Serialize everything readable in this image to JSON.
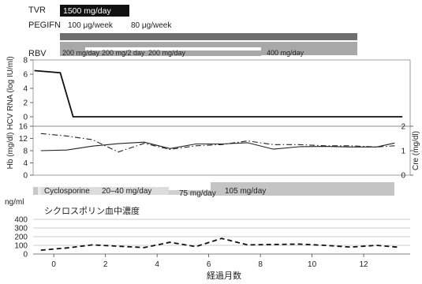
{
  "x_axis": {
    "label": "経過月数",
    "ticks": [
      0,
      2,
      4,
      6,
      8,
      10,
      12
    ],
    "range": [
      -0.8,
      13.8
    ]
  },
  "treatments": {
    "tvr": {
      "name": "TVR",
      "dose": "1500 mg/day"
    },
    "pegifn": {
      "name": "PEGIFN",
      "doses": [
        "100 μg/week",
        "80 μg/week"
      ]
    },
    "rbv": {
      "name": "RBV",
      "doses": [
        "200 mg/day",
        "200 mg/2 day",
        "200 mg/day",
        "400 mg/day"
      ]
    },
    "cyclosporine": {
      "name": "Cyclosporine",
      "doses": [
        "20–40 mg/day",
        "75 mg/day",
        "105 mg/day"
      ]
    }
  },
  "chart_data": [
    {
      "type": "line",
      "ylabel": "HCV RNA (log IU/ml)",
      "ylim": [
        0,
        8
      ],
      "yticks": [
        0,
        2,
        4,
        6,
        8
      ],
      "series": [
        {
          "x": [
            -0.75,
            0.25,
            0.75,
            13.5
          ],
          "y": [
            6.5,
            6.2,
            0,
            0
          ]
        }
      ]
    },
    {
      "type": "line",
      "ylabel_left": "Hb (mg/dl)",
      "ylabel_right": "Cre (mg/dl)",
      "ylim_left": [
        0,
        16
      ],
      "yticks_left": [
        0,
        4,
        8,
        12,
        16
      ],
      "ylim_right": [
        0,
        2
      ],
      "yticks_right": [
        0,
        1,
        2
      ],
      "series": [
        {
          "x": [
            -0.5,
            0.5,
            1.5,
            2.5,
            3.5,
            4.5,
            5.5,
            6.5,
            7.5,
            8.5,
            9.5,
            10.5,
            11.5,
            12.5,
            13.2
          ],
          "y": [
            8,
            8.2,
            9.5,
            10.3,
            10.8,
            8.7,
            10.2,
            10.2,
            10.6,
            8.5,
            9.3,
            9.4,
            9.2,
            9.2,
            10.5
          ]
        },
        {
          "x": [
            -0.5,
            0.5,
            1.5,
            2.5,
            3.5,
            4.5,
            5.5,
            6.5,
            7.5,
            8.5,
            9.5,
            10.5,
            11.5,
            12.5,
            13.2
          ],
          "y": [
            1.7,
            1.6,
            1.45,
            0.95,
            1.3,
            1.05,
            1.2,
            1.25,
            1.4,
            1.25,
            1.25,
            1.2,
            1.2,
            1.15,
            1.2
          ]
        }
      ]
    },
    {
      "type": "line",
      "unit": "ng/ml",
      "title": "シクロスポリン血中濃度",
      "ylim": [
        0,
        400
      ],
      "yticks": [
        0,
        100,
        200,
        300,
        400
      ],
      "series": [
        {
          "x": [
            -0.5,
            0.5,
            1.5,
            2.5,
            3.5,
            4.5,
            5.5,
            6.5,
            7.5,
            8.5,
            9.5,
            10.5,
            11.5,
            12.5,
            13.3
          ],
          "y": [
            45,
            70,
            105,
            90,
            75,
            135,
            85,
            180,
            105,
            110,
            115,
            100,
            80,
            100,
            80
          ]
        }
      ]
    }
  ]
}
